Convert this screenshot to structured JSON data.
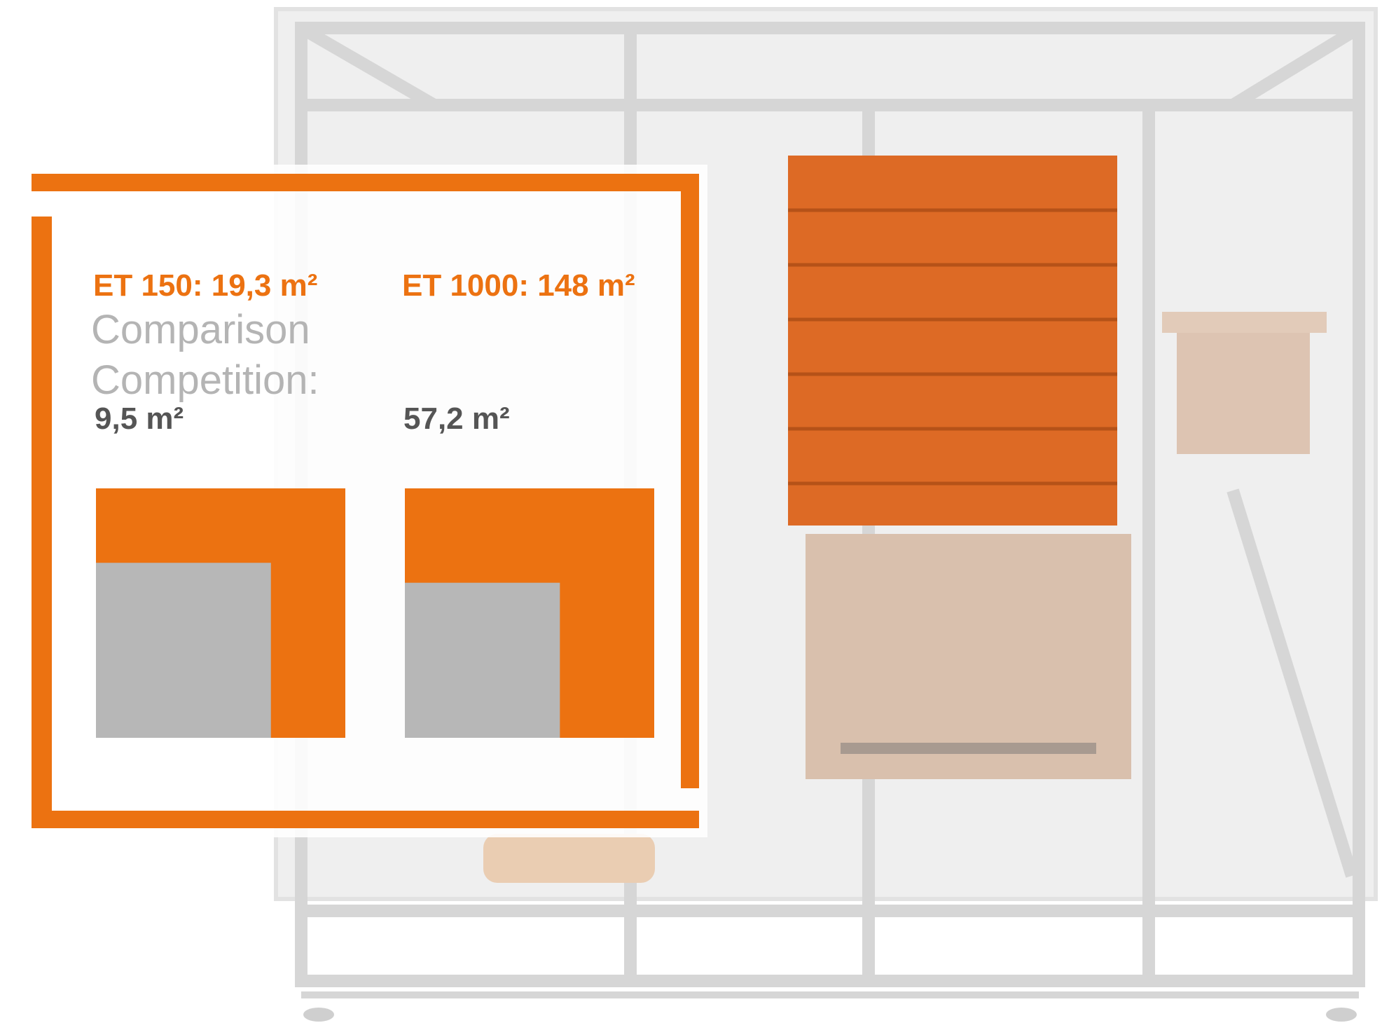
{
  "comparison_label": [
    "Comparison",
    "Competition:"
  ],
  "items": [
    {
      "title": "ET 150: 19,3 m²",
      "area": 19.3,
      "competitor": "9,5 m²",
      "competitor_area": 9.5
    },
    {
      "title": "ET 1000: 148 m²",
      "area": 148,
      "competitor": "57,2 m²",
      "competitor_area": 57.2
    }
  ]
}
